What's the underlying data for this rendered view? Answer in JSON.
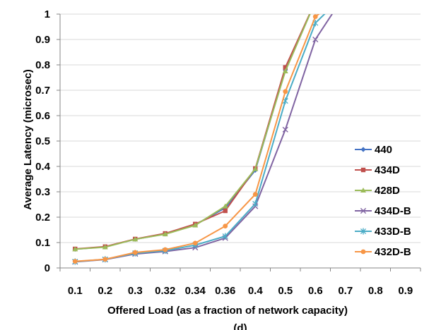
{
  "chart_data": {
    "type": "line",
    "xlabel": "Offered Load (as a fraction of network capacity)",
    "ylabel": "Average Latency (microsec)",
    "caption": "(d)",
    "categories": [
      "0.1",
      "0.2",
      "0.3",
      "0.32",
      "0.34",
      "0.36",
      "0.4",
      "0.5",
      "0.6",
      "0.7",
      "0.8",
      "0.9"
    ],
    "ylim": [
      0,
      1
    ],
    "yticks": [
      "0",
      "0.1",
      "0.2",
      "0.3",
      "0.4",
      "0.5",
      "0.6",
      "0.7",
      "0.8",
      "0.9",
      "1"
    ],
    "grid": true,
    "legend_position": "right",
    "series": [
      {
        "name": "440",
        "color": "#4472C4",
        "marker": "diamond",
        "values": [
          0.074,
          0.083,
          0.113,
          0.134,
          0.17,
          0.237,
          0.385,
          0.78,
          1.05,
          null,
          null,
          null
        ]
      },
      {
        "name": "434D",
        "color": "#C0504D",
        "marker": "square",
        "values": [
          0.075,
          0.084,
          0.114,
          0.136,
          0.173,
          0.225,
          0.392,
          0.79,
          1.05,
          null,
          null,
          null
        ]
      },
      {
        "name": "428D",
        "color": "#9BBB59",
        "marker": "triangle",
        "values": [
          0.074,
          0.082,
          0.113,
          0.133,
          0.168,
          0.243,
          0.39,
          0.775,
          1.05,
          null,
          null,
          null
        ]
      },
      {
        "name": "434D-B",
        "color": "#8064A2",
        "marker": "x",
        "values": [
          0.024,
          0.033,
          0.055,
          0.065,
          0.08,
          0.118,
          0.243,
          0.545,
          0.9,
          1.08,
          null,
          null
        ]
      },
      {
        "name": "433D-B",
        "color": "#4BACC6",
        "marker": "star",
        "values": [
          0.025,
          0.034,
          0.058,
          0.068,
          0.09,
          0.125,
          0.253,
          0.658,
          0.965,
          1.08,
          null,
          null
        ]
      },
      {
        "name": "432D-B",
        "color": "#F79646",
        "marker": "circle",
        "values": [
          0.026,
          0.034,
          0.061,
          0.072,
          0.098,
          0.165,
          0.29,
          0.695,
          0.99,
          1.08,
          null,
          null
        ]
      }
    ]
  }
}
